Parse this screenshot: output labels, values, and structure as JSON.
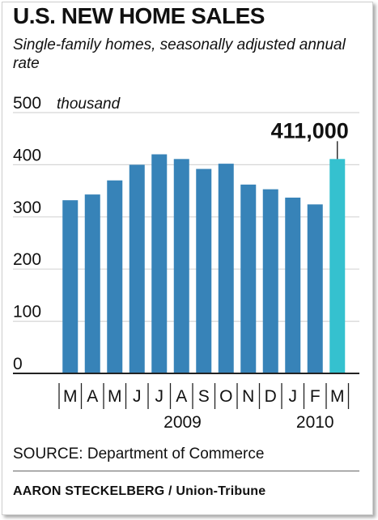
{
  "chart_data": {
    "type": "bar",
    "title": "U.S. NEW HOME SALES",
    "subtitle": "Single-family homes, seasonally adjusted annual rate",
    "unit_label": "thousand",
    "categories": [
      "M",
      "A",
      "M",
      "J",
      "J",
      "A",
      "S",
      "O",
      "N",
      "D",
      "J",
      "F",
      "M"
    ],
    "values": [
      332,
      343,
      370,
      400,
      420,
      411,
      392,
      402,
      362,
      353,
      337,
      324,
      411
    ],
    "highlight_index": 12,
    "highlight_label": "411,000",
    "ylim": [
      0,
      500
    ],
    "yticks": [
      0,
      100,
      200,
      300,
      400,
      500
    ],
    "year_groups": [
      {
        "label": "2009",
        "from": 0,
        "to": 9
      },
      {
        "label": "2010",
        "from": 10,
        "to": 12
      }
    ],
    "grid": true,
    "colors": {
      "bar": "#3783b8",
      "highlight": "#35c1cf",
      "grid": "#d6d6d6"
    }
  },
  "source": "SOURCE: Department of Commerce",
  "credit": "AARON STECKELBERG / Union-Tribune"
}
